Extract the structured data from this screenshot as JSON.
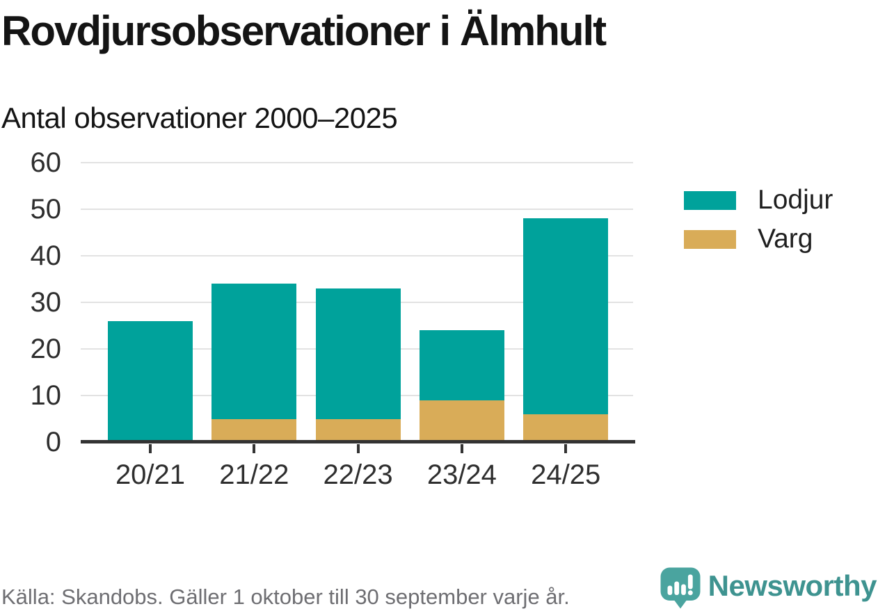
{
  "header": {
    "title": "Rovdjursobservationer i Älmhult",
    "subtitle": "Antal observationer 2000–2025"
  },
  "chart_data": {
    "type": "bar",
    "stacked": true,
    "title": "Rovdjursobservationer i Älmhult",
    "subtitle": "Antal observationer 2000–2025",
    "categories": [
      "20/21",
      "21/22",
      "22/23",
      "23/24",
      "24/25"
    ],
    "series": [
      {
        "name": "Lodjur",
        "color": "#00a29b",
        "values": [
          26,
          29,
          28,
          15,
          42
        ]
      },
      {
        "name": "Varg",
        "color": "#d9ac58",
        "values": [
          0,
          5,
          5,
          9,
          6
        ]
      }
    ],
    "stack_order_bottom_to_top": [
      "Varg",
      "Lodjur"
    ],
    "stacked_totals": [
      26,
      34,
      33,
      24,
      48
    ],
    "xlabel": "",
    "ylabel": "",
    "ylim": [
      0,
      60
    ],
    "yticks": [
      0,
      10,
      20,
      30,
      40,
      50,
      60
    ],
    "grid": true,
    "legend_position": "right"
  },
  "legend": {
    "items": [
      {
        "label": "Lodjur",
        "color": "#00a29b"
      },
      {
        "label": "Varg",
        "color": "#d9ac58"
      }
    ]
  },
  "footer": {
    "source": "Källa: Skandobs. Gäller 1 oktober till 30 september varje år.",
    "brand": "Newsworthy"
  },
  "colors": {
    "lodjur": "#00a29b",
    "varg": "#d9ac58",
    "axis": "#333333",
    "gridline": "#e2e2e2",
    "text": "#141414",
    "source_gray": "#6e6e72",
    "brand_teal": "#3e9390",
    "logo_bubble_teal": "#4aa49f"
  }
}
